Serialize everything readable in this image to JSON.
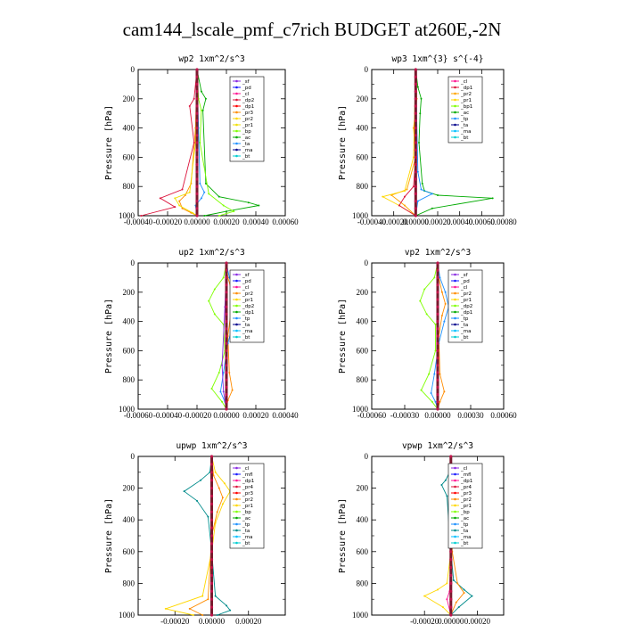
{
  "title": "cam144_lscale_pmf_c7rich  BUDGET at260E,-2N",
  "chart_data": [
    {
      "type": "line",
      "title": "wp2   1xm^2/s^3",
      "ylabel": "Pressure [hPa]",
      "xlim": [
        -0.0004,
        0.0006
      ],
      "ylim": [
        1000,
        0
      ],
      "xticks": [
        "-0.00040",
        "-0.00020",
        "0.00000",
        "0.00020",
        "0.00040",
        "0.00060"
      ],
      "yticks": [
        "0",
        "200",
        "400",
        "600",
        "800",
        "1000"
      ],
      "legend": [
        "_sf",
        "_pd",
        "_cl",
        "_dp2",
        "_dp1",
        "_pr3",
        "_pr2",
        "_pr1",
        "_bp",
        "_ac",
        "_ta",
        "_ma",
        "_bt"
      ],
      "colors": [
        "#8a2be2",
        "#1a1aff",
        "#ff1493",
        "#dc143c",
        "#ff0000",
        "#ff8c00",
        "#ffd700",
        "#f0e000",
        "#7fff00",
        "#00aa00",
        "#1e90ff",
        "#00008b",
        "#00ced1"
      ],
      "series": [
        {
          "name": "_pr3",
          "x": [
            0,
            -1e-05,
            -4e-05,
            -8e-05,
            -0.00012,
            -0.0001,
            -4e-05,
            0
          ],
          "y": [
            0,
            400,
            780,
            860,
            900,
            950,
            980,
            1000
          ]
        },
        {
          "name": "_ac",
          "x": [
            0,
            3e-05,
            6e-05,
            4e-05,
            6e-05,
            0.00015,
            0.00035,
            0.00042,
            0.0002,
            5e-05
          ],
          "y": [
            0,
            150,
            200,
            280,
            780,
            870,
            910,
            930,
            970,
            1000
          ]
        },
        {
          "name": "_ta",
          "x": [
            0,
            1e-05,
            2e-05,
            5e-05,
            3e-05,
            -1e-05,
            0
          ],
          "y": [
            0,
            400,
            780,
            840,
            880,
            930,
            1000
          ]
        },
        {
          "name": "_pr1",
          "x": [
            0,
            -1e-05,
            -5e-05,
            -0.00015,
            -0.00012,
            -3e-05,
            0
          ],
          "y": [
            0,
            500,
            840,
            880,
            930,
            980,
            1000
          ]
        },
        {
          "name": "_dp2",
          "x": [
            0,
            -2e-05,
            -5e-05,
            -2e-05,
            -0.0001,
            -0.00025,
            -0.00015,
            -0.00038
          ],
          "y": [
            0,
            200,
            250,
            500,
            820,
            880,
            940,
            1000
          ]
        },
        {
          "name": "_bp",
          "x": [
            0,
            1e-05,
            3e-05,
            2e-05,
            8e-05,
            0.00018,
            0.00025,
            0.00015
          ],
          "y": [
            0,
            200,
            280,
            500,
            850,
            930,
            970,
            1000
          ]
        }
      ]
    },
    {
      "type": "line",
      "title": "wp3   1xm^{3} s^{-4}",
      "ylabel": "Pressure [hPa]",
      "xlim": [
        -0.0004,
        0.0008
      ],
      "ylim": [
        1000,
        0
      ],
      "xticks": [
        "-0.00040",
        "-0.00020",
        "0.00000",
        "0.00020",
        "0.00040",
        "0.00060",
        "0.00080"
      ],
      "yticks": [
        "0",
        "200",
        "400",
        "600",
        "800",
        "1000"
      ],
      "legend": [
        "_cl",
        "_dp1",
        "_pr2",
        "_pr1",
        "_bp1",
        "_ac",
        "_tp",
        "_ta",
        "_ma",
        "_bt"
      ],
      "colors": [
        "#ff1493",
        "#dc143c",
        "#ffa500",
        "#ffd700",
        "#7fff00",
        "#00aa00",
        "#1e90ff",
        "#00008b",
        "#00bfff",
        "#00ced1"
      ],
      "series": [
        {
          "name": "_ac",
          "x": [
            0,
            2e-05,
            5e-05,
            4e-05,
            3e-05,
            6e-05,
            8e-05,
            0.0002,
            0.0007,
            0.00015,
            0
          ],
          "y": [
            0,
            120,
            200,
            300,
            500,
            780,
            830,
            860,
            880,
            950,
            1000
          ]
        },
        {
          "name": "_pr2",
          "x": [
            0,
            1e-05,
            -2e-05,
            0,
            -8e-05,
            -0.00022,
            -0.0001,
            0
          ],
          "y": [
            0,
            200,
            400,
            600,
            820,
            860,
            930,
            1000
          ]
        },
        {
          "name": "_pr1",
          "x": [
            0,
            -2e-05,
            -0.0001,
            -0.0003,
            -0.00015,
            0
          ],
          "y": [
            0,
            600,
            830,
            870,
            930,
            1000
          ]
        },
        {
          "name": "_tp",
          "x": [
            0,
            2e-05,
            5e-05,
            0.00015,
            2e-05,
            0
          ],
          "y": [
            0,
            700,
            820,
            850,
            900,
            1000
          ]
        },
        {
          "name": "_dp1",
          "x": [
            0,
            0,
            -2e-05,
            -0.0001,
            -0.00015,
            0
          ],
          "y": [
            0,
            600,
            800,
            870,
            930,
            1000
          ]
        }
      ]
    },
    {
      "type": "line",
      "title": "up2   1xm^2/s^3",
      "ylabel": "Pressure [hPa]",
      "xlim": [
        -0.0006,
        0.0004
      ],
      "ylim": [
        1000,
        0
      ],
      "xticks": [
        "-0.00060",
        "-0.00040",
        "-0.00020",
        "0.00000",
        "0.00020",
        "0.00040"
      ],
      "yticks": [
        "0",
        "200",
        "400",
        "600",
        "800",
        "1000"
      ],
      "legend": [
        "_sf",
        "_pd",
        "_cl",
        "_pr2",
        "_pr1",
        "_dp2",
        "_dp1",
        "_tp",
        "_ta",
        "_ma",
        "_bt"
      ],
      "colors": [
        "#8a2be2",
        "#1a1aff",
        "#ff1493",
        "#ff8c00",
        "#ffd700",
        "#7fff00",
        "#00aa00",
        "#1e90ff",
        "#00008b",
        "#00bfff",
        "#00ced1"
      ],
      "series": [
        {
          "name": "_dp2",
          "x": [
            0,
            -2e-05,
            -8e-05,
            -0.00012,
            -8e-05,
            -2e-05,
            -1e-05,
            -5e-05,
            -0.0001,
            -3e-05,
            0
          ],
          "y": [
            0,
            100,
            180,
            260,
            350,
            420,
            600,
            750,
            860,
            950,
            1000
          ]
        },
        {
          "name": "_pr2",
          "x": [
            0,
            1e-05,
            4e-05,
            6e-05,
            3e-05,
            1e-05,
            2e-05,
            4e-05,
            1e-05,
            0
          ],
          "y": [
            0,
            100,
            200,
            270,
            350,
            500,
            750,
            870,
            940,
            1000
          ]
        },
        {
          "name": "_tp",
          "x": [
            0,
            2e-05,
            6e-05,
            9e-05,
            5e-05,
            1e-05,
            -2e-05,
            -4e-05,
            -1e-05,
            0
          ],
          "y": [
            0,
            100,
            200,
            300,
            400,
            550,
            750,
            880,
            950,
            1000
          ]
        },
        {
          "name": "_ac",
          "x": [
            0,
            -1e-05,
            -3e-05,
            -2e-05,
            0
          ],
          "y": [
            0,
            300,
            700,
            880,
            1000
          ]
        }
      ]
    },
    {
      "type": "line",
      "title": "vp2   1xm^2/s^3",
      "ylabel": "Pressure [hPa]",
      "xlim": [
        -0.0006,
        0.0006
      ],
      "ylim": [
        1000,
        0
      ],
      "xticks": [
        "-0.00060",
        "-0.00030",
        "0.00000",
        "0.00030",
        "0.00060"
      ],
      "yticks": [
        "0",
        "200",
        "400",
        "600",
        "800",
        "1000"
      ],
      "legend": [
        "_sf",
        "_pd",
        "_cl",
        "_pr2",
        "_pr1",
        "_dp2",
        "_dp1",
        "_tp",
        "_ta",
        "_ma",
        "_bt"
      ],
      "colors": [
        "#8a2be2",
        "#1a1aff",
        "#ff1493",
        "#ff8c00",
        "#ffd700",
        "#7fff00",
        "#00aa00",
        "#1e90ff",
        "#00008b",
        "#00bfff",
        "#00ced1"
      ],
      "series": [
        {
          "name": "_dp2",
          "x": [
            0,
            -3e-05,
            -0.00012,
            -0.00016,
            -0.0001,
            -2e-05,
            -2e-05,
            -8e-05,
            -0.00015,
            -5e-05,
            0
          ],
          "y": [
            0,
            100,
            180,
            260,
            350,
            420,
            600,
            760,
            870,
            950,
            1000
          ]
        },
        {
          "name": "_pr2",
          "x": [
            0,
            1e-05,
            4e-05,
            7e-05,
            4e-05,
            1e-05,
            2e-05,
            6e-05,
            2e-05,
            0
          ],
          "y": [
            0,
            100,
            200,
            280,
            360,
            500,
            760,
            880,
            950,
            1000
          ]
        },
        {
          "name": "_tp",
          "x": [
            0,
            2e-05,
            7e-05,
            0.0001,
            6e-05,
            1e-05,
            -3e-05,
            -6e-05,
            -2e-05,
            0
          ],
          "y": [
            0,
            100,
            200,
            300,
            400,
            550,
            760,
            890,
            950,
            1000
          ]
        }
      ]
    },
    {
      "type": "line",
      "title": "upwp   1xm^2/s^3",
      "ylabel": "Pressure [hPa]",
      "xlim": [
        -0.0004,
        0.0004
      ],
      "ylim": [
        1000,
        0
      ],
      "xticks": [
        "-0.00020",
        "0.00000",
        "0.00020"
      ],
      "yticks": [
        "0",
        "200",
        "400",
        "600",
        "800",
        "1000"
      ],
      "legend": [
        "_cl",
        "_mfl",
        "_dp1",
        "_pr4",
        "_pr3",
        "_pr2",
        "_pr1",
        "_bp",
        "_ac",
        "_tp",
        "_ta",
        "_ma",
        "_bt"
      ],
      "colors": [
        "#8a2be2",
        "#1a1aff",
        "#ff1493",
        "#dc143c",
        "#ff0000",
        "#ff8c00",
        "#ffd700",
        "#7fff00",
        "#00aa00",
        "#1e90ff",
        "#008b8b",
        "#00bfff",
        "#00ced1"
      ],
      "series": [
        {
          "name": "_ta",
          "x": [
            0,
            -1e-05,
            -6e-05,
            -0.00015,
            -8e-05,
            -2e-05,
            0,
            2e-05,
            8e-05,
            0.0001,
            3e-05
          ],
          "y": [
            0,
            100,
            150,
            220,
            280,
            380,
            600,
            880,
            940,
            970,
            1000
          ]
        },
        {
          "name": "_pr1",
          "x": [
            0,
            2e-05,
            7e-05,
            0.0001,
            6e-05,
            2e-05,
            0,
            -5e-05,
            -0.00025,
            -0.0001
          ],
          "y": [
            0,
            100,
            170,
            220,
            300,
            420,
            600,
            880,
            960,
            1000
          ]
        },
        {
          "name": "_pr2",
          "x": [
            0,
            1e-05,
            4e-05,
            6e-05,
            3e-05,
            0,
            -2e-05,
            -0.00012,
            -5e-05
          ],
          "y": [
            0,
            120,
            200,
            260,
            350,
            500,
            900,
            960,
            1000
          ]
        }
      ]
    },
    {
      "type": "line",
      "title": "vpwp   1xm^2/s^3",
      "ylabel": "Pressure [hPa]",
      "xlim": [
        -0.0006,
        0.0004
      ],
      "ylim": [
        1000,
        0
      ],
      "xticks": [
        "-0.00020",
        "0.00000",
        "0.00020"
      ],
      "yticks": [
        "0",
        "200",
        "400",
        "600",
        "800",
        "1000"
      ],
      "legend": [
        "_cl",
        "_mfl",
        "_dp1",
        "_pr4",
        "_pr3",
        "_pr2",
        "_pr1",
        "_bp",
        "_ac",
        "_tp",
        "_ta",
        "_ma",
        "_bt"
      ],
      "colors": [
        "#8a2be2",
        "#1a1aff",
        "#ff1493",
        "#dc143c",
        "#ff0000",
        "#ff8c00",
        "#ffd700",
        "#7fff00",
        "#00aa00",
        "#1e90ff",
        "#008b8b",
        "#00bfff",
        "#00ced1"
      ],
      "series": [
        {
          "name": "_ta",
          "x": [
            0,
            -1e-05,
            -4e-05,
            -7e-05,
            -3e-05,
            0,
            2e-05,
            0.0001,
            0.00016,
            6e-05,
            0
          ],
          "y": [
            0,
            100,
            150,
            180,
            250,
            600,
            780,
            840,
            880,
            950,
            1000
          ]
        },
        {
          "name": "_pr1",
          "x": [
            0,
            0,
            -3e-05,
            -0.0001,
            -0.0002,
            -6e-05,
            0
          ],
          "y": [
            0,
            600,
            800,
            840,
            880,
            950,
            1000
          ]
        },
        {
          "name": "_pr2",
          "x": [
            0,
            1e-05,
            5e-05,
            0.0001,
            4e-05,
            0
          ],
          "y": [
            0,
            600,
            800,
            860,
            920,
            1000
          ]
        },
        {
          "name": "_dp1",
          "x": [
            0,
            0,
            -1e-05,
            -3e-05,
            0
          ],
          "y": [
            0,
            600,
            850,
            900,
            1000
          ]
        }
      ]
    }
  ]
}
